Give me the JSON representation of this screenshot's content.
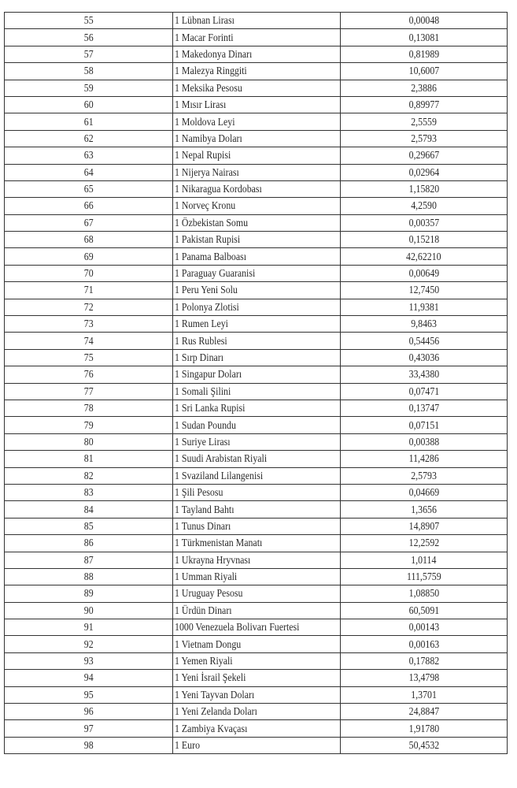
{
  "rows": [
    {
      "no": "55",
      "currency": "1 Lübnan Lirası",
      "rate": "0,00048"
    },
    {
      "no": "56",
      "currency": "1 Macar Forinti",
      "rate": "0,13081"
    },
    {
      "no": "57",
      "currency": "1 Makedonya Dinarı",
      "rate": "0,81989"
    },
    {
      "no": "58",
      "currency": "1 Malezya Ringgiti",
      "rate": "10,6007"
    },
    {
      "no": "59",
      "currency": "1 Meksika Pesosu",
      "rate": "2,3886"
    },
    {
      "no": "60",
      "currency": "1 Mısır Lirası",
      "rate": "0,89977"
    },
    {
      "no": "61",
      "currency": "1 Moldova Leyi",
      "rate": "2,5559"
    },
    {
      "no": "62",
      "currency": "1 Namibya Doları",
      "rate": "2,5793"
    },
    {
      "no": "63",
      "currency": "1 Nepal Rupisi",
      "rate": "0,29667"
    },
    {
      "no": "64",
      "currency": "1 Nijerya Nairası",
      "rate": "0,02964"
    },
    {
      "no": "65",
      "currency": "1 Nikaragua Kordobası",
      "rate": "1,15820"
    },
    {
      "no": "66",
      "currency": "1 Norveç Kronu",
      "rate": "4,2590"
    },
    {
      "no": "67",
      "currency": "1 Özbekistan Somu",
      "rate": "0,00357"
    },
    {
      "no": "68",
      "currency": "1 Pakistan Rupisi",
      "rate": "0,15218"
    },
    {
      "no": "69",
      "currency": "1 Panama Balboası",
      "rate": "42,62210"
    },
    {
      "no": "70",
      "currency": "1 Paraguay Guaranisi",
      "rate": "0,00649"
    },
    {
      "no": "71",
      "currency": "1 Peru Yeni Solu",
      "rate": "12,7450"
    },
    {
      "no": "72",
      "currency": "1 Polonya Zlotisi",
      "rate": "11,9381"
    },
    {
      "no": "73",
      "currency": "1 Rumen Leyi",
      "rate": "9,8463"
    },
    {
      "no": "74",
      "currency": "1 Rus Rublesi",
      "rate": "0,54456"
    },
    {
      "no": "75",
      "currency": "1 Sırp Dinarı",
      "rate": "0,43036"
    },
    {
      "no": "76",
      "currency": "1 Singapur Doları",
      "rate": "33,4380"
    },
    {
      "no": "77",
      "currency": "1 Somali Şilini",
      "rate": "0,07471"
    },
    {
      "no": "78",
      "currency": "1 Sri Lanka Rupisi",
      "rate": "0,13747"
    },
    {
      "no": "79",
      "currency": "1 Sudan Poundu",
      "rate": "0,07151"
    },
    {
      "no": "80",
      "currency": "1 Suriye Lirası",
      "rate": "0,00388"
    },
    {
      "no": "81",
      "currency": "1 Suudi Arabistan Riyali",
      "rate": "11,4286"
    },
    {
      "no": "82",
      "currency": "1 Svaziland Lilangenisi",
      "rate": "2,5793"
    },
    {
      "no": "83",
      "currency": "1 Şili Pesosu",
      "rate": "0,04669"
    },
    {
      "no": "84",
      "currency": "1 Tayland Bahtı",
      "rate": "1,3656"
    },
    {
      "no": "85",
      "currency": "1 Tunus Dinarı",
      "rate": "14,8907"
    },
    {
      "no": "86",
      "currency": "1 Türkmenistan Manatı",
      "rate": "12,2592"
    },
    {
      "no": "87",
      "currency": "1 Ukrayna Hryvnası",
      "rate": "1,0114"
    },
    {
      "no": "88",
      "currency": "1 Umman Riyali",
      "rate": "111,5759"
    },
    {
      "no": "89",
      "currency": "1 Uruguay Pesosu",
      "rate": "1,08850"
    },
    {
      "no": "90",
      "currency": "1 Ürdün Dinarı",
      "rate": "60,5091"
    },
    {
      "no": "91",
      "currency": "1000 Venezuela Bolivarı Fuertesi",
      "rate": "0,00143"
    },
    {
      "no": "92",
      "currency": "1 Vietnam Dongu",
      "rate": "0,00163"
    },
    {
      "no": "93",
      "currency": "1 Yemen Riyali",
      "rate": "0,17882"
    },
    {
      "no": "94",
      "currency": "1 Yeni İsrail Şekeli",
      "rate": "13,4798"
    },
    {
      "no": "95",
      "currency": "1 Yeni Tayvan Doları",
      "rate": "1,3701"
    },
    {
      "no": "96",
      "currency": "1 Yeni Zelanda Doları",
      "rate": "24,8847"
    },
    {
      "no": "97",
      "currency": "1 Zambiya Kvaçası",
      "rate": "1,91780"
    },
    {
      "no": "98",
      "currency": "1 Euro",
      "rate": "50,4532"
    }
  ]
}
